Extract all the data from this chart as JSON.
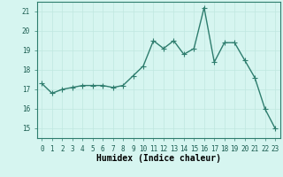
{
  "x": [
    0,
    1,
    2,
    3,
    4,
    5,
    6,
    7,
    8,
    9,
    10,
    11,
    12,
    13,
    14,
    15,
    16,
    17,
    18,
    19,
    20,
    21,
    22,
    23
  ],
  "y": [
    17.3,
    16.8,
    17.0,
    17.1,
    17.2,
    17.2,
    17.2,
    17.1,
    17.2,
    17.7,
    18.2,
    19.5,
    19.1,
    19.5,
    18.8,
    19.1,
    21.2,
    18.4,
    19.4,
    19.4,
    18.5,
    17.6,
    16.0,
    15.0
  ],
  "line_color": "#2e7d6e",
  "marker_color": "#2e7d6e",
  "bg_color": "#d6f5f0",
  "grid_color": "#c0e8e0",
  "xlabel": "Humidex (Indice chaleur)",
  "ylim": [
    14.5,
    21.5
  ],
  "xlim": [
    -0.5,
    23.5
  ],
  "yticks": [
    15,
    16,
    17,
    18,
    19,
    20,
    21
  ],
  "xtick_labels": [
    "0",
    "1",
    "2",
    "3",
    "4",
    "5",
    "6",
    "7",
    "8",
    "9",
    "10",
    "11",
    "12",
    "13",
    "14",
    "15",
    "16",
    "17",
    "18",
    "19",
    "20",
    "21",
    "22",
    "23"
  ],
  "figsize": [
    3.2,
    2.0
  ],
  "dpi": 100,
  "label_fontsize": 7,
  "tick_fontsize": 5.5,
  "linewidth": 1.0,
  "markersize": 2.0
}
